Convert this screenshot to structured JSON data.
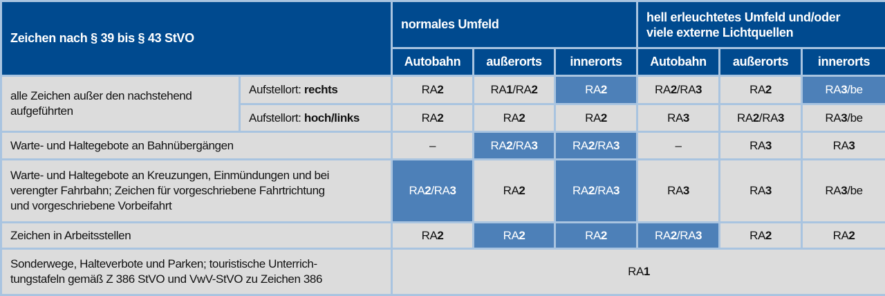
{
  "colors": {
    "header_bg": "#004a8f",
    "cell_bg": "#dcdcdc",
    "highlight_bg": "#4d80b8",
    "grid": "#a9c4e0"
  },
  "header": {
    "title": "Zeichen nach § 39 bis § 43 StVO",
    "groups": [
      "normales Umfeld",
      "hell erleuchtetes Umfeld und/oder\nviele externe Lichtquellen"
    ],
    "columns": [
      "Autobahn",
      "außerorts",
      "innerorts",
      "Autobahn",
      "außerorts",
      "innerorts"
    ]
  },
  "rows": [
    {
      "label": "alle Zeichen außer den nachstehend\naufgeführten",
      "sublabel": [
        {
          "t": "Aufstellort: "
        },
        {
          "t": "rechts",
          "b": true
        }
      ],
      "cells": [
        {
          "p": [
            {
              "t": "RA"
            },
            {
              "t": "2",
              "b": true
            }
          ]
        },
        {
          "p": [
            {
              "t": "RA"
            },
            {
              "t": "1",
              "b": true
            },
            {
              "t": "/RA"
            },
            {
              "t": "2",
              "b": true
            }
          ]
        },
        {
          "p": [
            {
              "t": "RA"
            },
            {
              "t": "2",
              "b": true
            }
          ],
          "highlighted": true
        },
        {
          "p": [
            {
              "t": "RA"
            },
            {
              "t": "2",
              "b": true
            },
            {
              "t": "/RA"
            },
            {
              "t": "3",
              "b": true
            }
          ]
        },
        {
          "p": [
            {
              "t": "RA"
            },
            {
              "t": "2",
              "b": true
            }
          ]
        },
        {
          "p": [
            {
              "t": "RA"
            },
            {
              "t": "3",
              "b": true
            },
            {
              "t": "/be"
            }
          ],
          "highlighted": true
        }
      ]
    },
    {
      "sublabel": [
        {
          "t": "Aufstellort: "
        },
        {
          "t": "hoch/links",
          "b": true
        }
      ],
      "cells": [
        {
          "p": [
            {
              "t": "RA"
            },
            {
              "t": "2",
              "b": true
            }
          ]
        },
        {
          "p": [
            {
              "t": "RA"
            },
            {
              "t": "2",
              "b": true
            }
          ]
        },
        {
          "p": [
            {
              "t": "RA"
            },
            {
              "t": "2",
              "b": true
            }
          ]
        },
        {
          "p": [
            {
              "t": "RA"
            },
            {
              "t": "3",
              "b": true
            }
          ]
        },
        {
          "p": [
            {
              "t": "RA"
            },
            {
              "t": "2",
              "b": true
            },
            {
              "t": "/RA"
            },
            {
              "t": "3",
              "b": true
            }
          ]
        },
        {
          "p": [
            {
              "t": "RA"
            },
            {
              "t": "3",
              "b": true
            },
            {
              "t": "/be"
            }
          ]
        }
      ]
    },
    {
      "label": "Warte- und Haltegebote an Bahnübergängen",
      "cells": [
        {
          "p": [
            {
              "t": "–"
            }
          ]
        },
        {
          "p": [
            {
              "t": "RA"
            },
            {
              "t": "2",
              "b": true
            },
            {
              "t": "/RA"
            },
            {
              "t": "3",
              "b": true
            }
          ],
          "highlighted": true
        },
        {
          "p": [
            {
              "t": "RA"
            },
            {
              "t": "2",
              "b": true
            },
            {
              "t": "/RA"
            },
            {
              "t": "3",
              "b": true
            }
          ],
          "highlighted": true
        },
        {
          "p": [
            {
              "t": "–"
            }
          ]
        },
        {
          "p": [
            {
              "t": "RA"
            },
            {
              "t": "3",
              "b": true
            }
          ]
        },
        {
          "p": [
            {
              "t": "RA"
            },
            {
              "t": "3",
              "b": true
            }
          ]
        }
      ]
    },
    {
      "label": "Warte- und Haltegebote an Kreuzungen, Einmündungen und bei\nverengter Fahrbahn; Zeichen für vorgeschriebene Fahrtrichtung\nund vorgeschriebene Vorbeifahrt",
      "cells": [
        {
          "p": [
            {
              "t": "RA"
            },
            {
              "t": "2",
              "b": true
            },
            {
              "t": "/RA"
            },
            {
              "t": "3",
              "b": true
            }
          ],
          "highlighted": true
        },
        {
          "p": [
            {
              "t": "RA"
            },
            {
              "t": "2",
              "b": true
            }
          ]
        },
        {
          "p": [
            {
              "t": "RA"
            },
            {
              "t": "2",
              "b": true
            },
            {
              "t": "/RA"
            },
            {
              "t": "3",
              "b": true
            }
          ],
          "highlighted": true
        },
        {
          "p": [
            {
              "t": "RA"
            },
            {
              "t": "3",
              "b": true
            }
          ]
        },
        {
          "p": [
            {
              "t": "RA"
            },
            {
              "t": "3",
              "b": true
            }
          ]
        },
        {
          "p": [
            {
              "t": "RA"
            },
            {
              "t": "3",
              "b": true
            },
            {
              "t": "/be"
            }
          ]
        }
      ]
    },
    {
      "label": "Zeichen in Arbeitsstellen",
      "cells": [
        {
          "p": [
            {
              "t": "RA"
            },
            {
              "t": "2",
              "b": true
            }
          ]
        },
        {
          "p": [
            {
              "t": "RA"
            },
            {
              "t": "2",
              "b": true
            }
          ],
          "highlighted": true
        },
        {
          "p": [
            {
              "t": "RA"
            },
            {
              "t": "2",
              "b": true
            }
          ],
          "highlighted": true
        },
        {
          "p": [
            {
              "t": "RA"
            },
            {
              "t": "2",
              "b": true
            },
            {
              "t": "/RA"
            },
            {
              "t": "3",
              "b": true
            }
          ],
          "highlighted": true
        },
        {
          "p": [
            {
              "t": "RA"
            },
            {
              "t": "2",
              "b": true
            }
          ]
        },
        {
          "p": [
            {
              "t": "RA"
            },
            {
              "t": "2",
              "b": true
            }
          ]
        }
      ]
    },
    {
      "label": "Sonderwege, Halteverbote und Parken; touristische Unterrich-\ntungstafeln gemäß Z 386 StVO und VwV-StVO zu Zeichen 386",
      "merged": {
        "p": [
          {
            "t": "RA"
          },
          {
            "t": "1",
            "b": true
          }
        ]
      }
    }
  ]
}
